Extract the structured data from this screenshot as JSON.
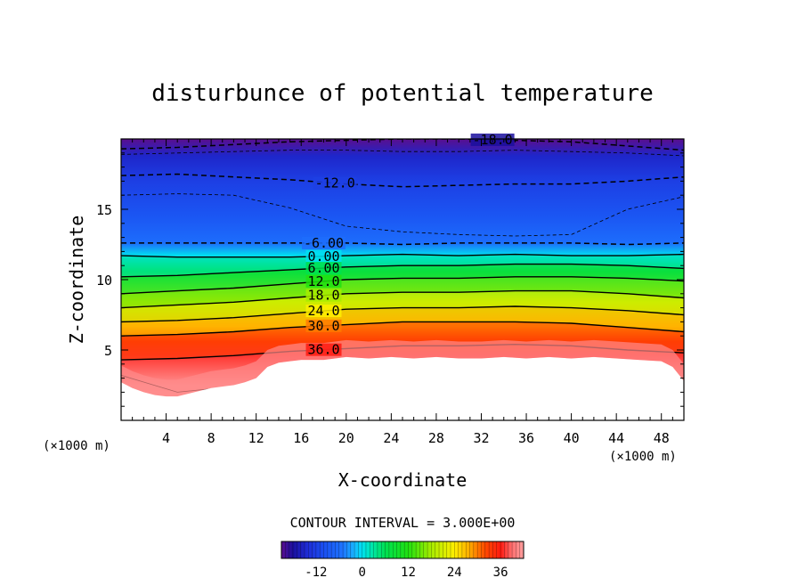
{
  "chart_data": {
    "type": "contour",
    "title": "disturbunce of potential temperature",
    "xlabel": "X-coordinate",
    "ylabel": "Z-coordinate",
    "x_unit": "(×1000 m)",
    "z_unit": "(×1000 m)",
    "xlim": [
      0,
      50
    ],
    "ylim": [
      0,
      20
    ],
    "x_ticks": [
      4,
      8,
      12,
      16,
      20,
      24,
      28,
      32,
      36,
      40,
      44,
      48
    ],
    "y_ticks": [
      5,
      10,
      15
    ],
    "contour_interval_text": "CONTOUR INTERVAL = 3.000E+00",
    "contour_interval": 3.0,
    "value_range": [
      -21,
      42
    ],
    "colorbar_ticks": [
      -12,
      0,
      12,
      24,
      36
    ],
    "terrain_top": [
      [
        0,
        2.7
      ],
      [
        1,
        2.3
      ],
      [
        2,
        2.0
      ],
      [
        3,
        1.8
      ],
      [
        4,
        1.7
      ],
      [
        5,
        1.7
      ],
      [
        6,
        1.9
      ],
      [
        8,
        2.3
      ],
      [
        10,
        2.5
      ],
      [
        11,
        2.7
      ],
      [
        12,
        3.0
      ],
      [
        13,
        3.8
      ],
      [
        14,
        4.1
      ],
      [
        15,
        4.2
      ],
      [
        16,
        4.3
      ],
      [
        18,
        4.3
      ],
      [
        20,
        4.5
      ],
      [
        22,
        4.4
      ],
      [
        24,
        4.5
      ],
      [
        26,
        4.4
      ],
      [
        28,
        4.5
      ],
      [
        30,
        4.4
      ],
      [
        32,
        4.4
      ],
      [
        34,
        4.5
      ],
      [
        36,
        4.4
      ],
      [
        38,
        4.5
      ],
      [
        40,
        4.4
      ],
      [
        42,
        4.5
      ],
      [
        44,
        4.4
      ],
      [
        46,
        4.3
      ],
      [
        48,
        4.2
      ],
      [
        49,
        3.8
      ],
      [
        50,
        2.8
      ]
    ],
    "solid_contours": [
      {
        "z": [
          11.7,
          11.6,
          11.6,
          11.6,
          11.7,
          11.8,
          11.7,
          11.8,
          11.7,
          11.7,
          11.8
        ],
        "label": "0.00"
      },
      {
        "z": [
          10.2,
          10.3,
          10.5,
          10.7,
          10.9,
          11.0,
          11.0,
          11.1,
          11.1,
          11.0,
          10.8
        ],
        "label": "6.00"
      },
      {
        "z": [
          9.0,
          9.2,
          9.4,
          9.7,
          10.0,
          10.1,
          10.1,
          10.2,
          10.2,
          10.1,
          9.9
        ],
        "label": "12.0"
      },
      {
        "z": [
          8.0,
          8.2,
          8.4,
          8.7,
          9.0,
          9.1,
          9.1,
          9.2,
          9.2,
          9.0,
          8.7
        ],
        "label": "18.0"
      },
      {
        "z": [
          7.0,
          7.1,
          7.3,
          7.6,
          7.9,
          8.0,
          8.0,
          8.1,
          8.0,
          7.8,
          7.5
        ],
        "label": "24.0"
      },
      {
        "z": [
          6.0,
          6.1,
          6.3,
          6.6,
          6.8,
          7.0,
          7.0,
          7.0,
          6.9,
          6.6,
          6.3
        ],
        "label": "30.0"
      },
      {
        "z": [
          4.3,
          4.4,
          4.6,
          4.9,
          5.1,
          5.3,
          5.3,
          5.4,
          5.3,
          5.0,
          4.8
        ],
        "label": "36.0"
      }
    ],
    "dashed_contours": [
      {
        "z": [
          19.3,
          19.4,
          19.6,
          19.8,
          19.9,
          20.0,
          20.0,
          19.9,
          19.8,
          19.5,
          19.2
        ],
        "label": "-18.0",
        "weight": "heavy"
      },
      {
        "z": [
          18.9,
          19.0,
          19.1,
          19.2,
          19.2,
          19.1,
          19.1,
          19.2,
          19.1,
          19.0,
          18.8
        ],
        "label": "",
        "weight": "light"
      },
      {
        "z": [
          17.4,
          17.5,
          17.3,
          17.1,
          16.8,
          16.6,
          16.7,
          16.8,
          16.8,
          17.0,
          17.3
        ],
        "label": "-12.0",
        "weight": "heavy"
      },
      {
        "z": [
          16.0,
          16.1,
          16.0,
          15.1,
          13.8,
          13.4,
          13.2,
          13.1,
          13.2,
          15.0,
          15.9
        ],
        "label": "",
        "weight": "light"
      },
      {
        "z": [
          12.6,
          12.6,
          12.6,
          12.6,
          12.6,
          12.5,
          12.6,
          12.6,
          12.6,
          12.5,
          12.6
        ],
        "label": "-6.00",
        "weight": "heavy"
      }
    ],
    "lower_contour": {
      "z": [
        3.2,
        2.0,
        2.4,
        2.9,
        3.4,
        3.6,
        3.7,
        3.8,
        3.8,
        3.6,
        3.0
      ]
    },
    "color_scale": [
      {
        "v": -21,
        "c": "#5a0e8e"
      },
      {
        "v": -18,
        "c": "#1a0f9e"
      },
      {
        "v": -14,
        "c": "#1f2ed8"
      },
      {
        "v": -10,
        "c": "#1a4ff0"
      },
      {
        "v": -5,
        "c": "#1e74ff"
      },
      {
        "v": -2,
        "c": "#18b6ff"
      },
      {
        "v": 0,
        "c": "#00e0f0"
      },
      {
        "v": 3,
        "c": "#00e6a0"
      },
      {
        "v": 6,
        "c": "#00e050"
      },
      {
        "v": 12,
        "c": "#20e010"
      },
      {
        "v": 18,
        "c": "#a8ec00"
      },
      {
        "v": 24,
        "c": "#ffee00"
      },
      {
        "v": 28,
        "c": "#ffaa00"
      },
      {
        "v": 32,
        "c": "#ff4a00"
      },
      {
        "v": 36,
        "c": "#ff1a10"
      },
      {
        "v": 39,
        "c": "#ff6f6f"
      },
      {
        "v": 42,
        "c": "#ffa0a0"
      }
    ]
  }
}
